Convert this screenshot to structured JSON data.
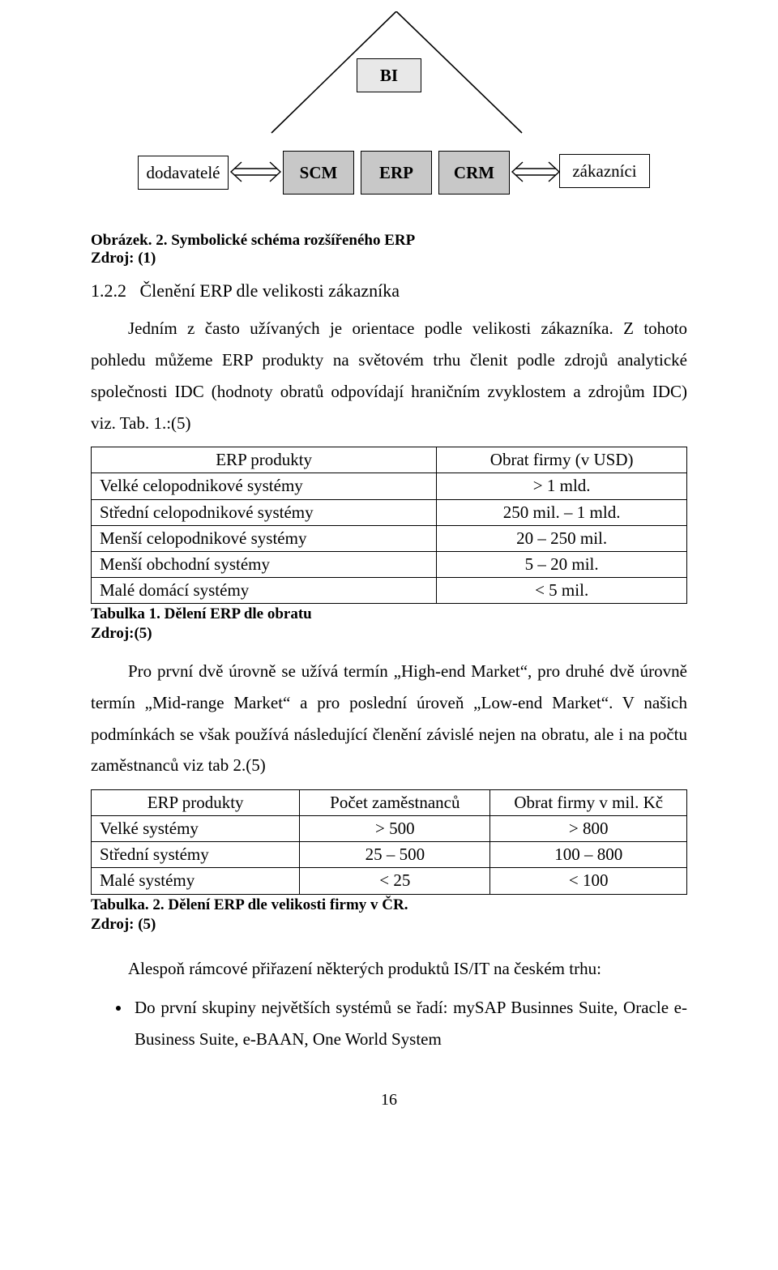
{
  "diagram": {
    "roof_stroke": "#000000",
    "bi_label": "BI",
    "left_box": "dodavatelé",
    "scm": "SCM",
    "erp": "ERP",
    "crm": "CRM",
    "right_box": "zákazníci",
    "box_fill_grey": "#c8c8c8",
    "box_fill_lightgrey": "#e8e8e8"
  },
  "fig_caption": "Obrázek. 2. Symbolické schéma rozšířeného ERP",
  "fig_source": "Zdroj: (1)",
  "subsection_num": "1.2.2",
  "subsection_title": "Členění ERP dle velikosti zákazníka",
  "para1": "Jedním z často užívaných je orientace podle velikosti zákazníka. Z tohoto pohledu můžeme ERP produkty na světovém trhu členit podle zdrojů analytické společnosti IDC (hodnoty obratů odpovídají hraničním zvyklostem a zdrojům IDC) viz. Tab. 1.:(5)",
  "table1": {
    "columns": [
      "ERP produkty",
      "Obrat firmy (v USD)"
    ],
    "rows": [
      [
        "Velké celopodnikové systémy",
        "> 1 mld."
      ],
      [
        "Střední celopodnikové systémy",
        "250 mil. – 1 mld."
      ],
      [
        "Menší celopodnikové systémy",
        "20 – 250 mil."
      ],
      [
        "Menší obchodní systémy",
        "5 – 20 mil."
      ],
      [
        "Malé domácí systémy",
        "< 5 mil."
      ]
    ],
    "col_widths": [
      "58%",
      "42%"
    ]
  },
  "table1_caption": "Tabulka 1. Dělení ERP dle obratu",
  "table1_source": "Zdroj:(5)",
  "para2": "Pro první dvě úrovně se užívá termín „High-end Market“, pro druhé dvě úrovně termín „Mid-range Market“ a pro poslední úroveň „Low-end Market“. V našich podmínkách se však používá následující členění závislé nejen na obratu, ale i na počtu zaměstnanců viz tab 2.(5)",
  "table2": {
    "columns": [
      "ERP produkty",
      "Počet zaměstnanců",
      "Obrat firmy v mil. Kč"
    ],
    "rows": [
      [
        "Velké systémy",
        "> 500",
        "> 800"
      ],
      [
        "Střední systémy",
        "25 – 500",
        "100 – 800"
      ],
      [
        "Malé systémy",
        "< 25",
        "< 100"
      ]
    ],
    "col_widths": [
      "35%",
      "32%",
      "33%"
    ]
  },
  "table2_caption": "Tabulka. 2. Dělení ERP dle velikosti firmy v ČR.",
  "table2_source": "Zdroj: (5)",
  "para3": "Alespoň rámcové přiřazení některých produktů IS/IT na českém trhu:",
  "bullet1": "Do první skupiny největších systémů se řadí: mySAP Businnes Suite, Oracle e-Business Suite, e-BAAN, One World System",
  "page_number": "16"
}
